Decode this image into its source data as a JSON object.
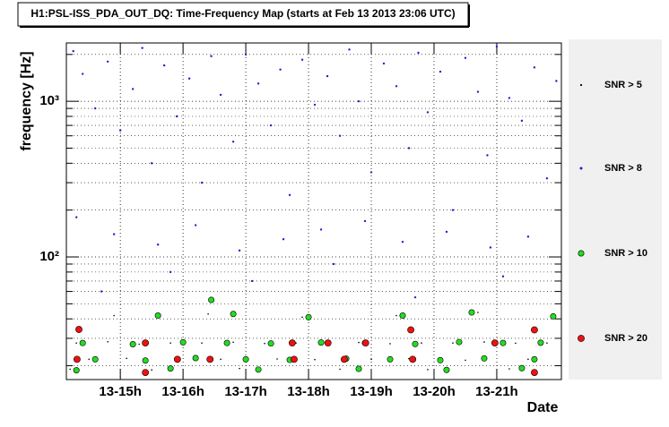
{
  "chart_data": {
    "type": "scatter",
    "title": "H1:PSL-ISS_PDA_OUT_DQ: Time-Frequency Map (starts at Feb 13 2013 23:06 UTC)",
    "xlabel": "Date",
    "ylabel": "frequency [Hz]",
    "xlim": [
      14.14,
      22.03
    ],
    "ylim": [
      16.3,
      2370
    ],
    "ylog": true,
    "grid": true,
    "xticks": [
      {
        "value": 15,
        "label": "13-15h"
      },
      {
        "value": 16,
        "label": "13-16h"
      },
      {
        "value": 17,
        "label": "13-17h"
      },
      {
        "value": 18,
        "label": "13-18h"
      },
      {
        "value": 19,
        "label": "13-19h"
      },
      {
        "value": 20,
        "label": "13-20h"
      },
      {
        "value": 21,
        "label": "13-21h"
      }
    ],
    "yticks": [
      {
        "value": 100,
        "label": "10²"
      },
      {
        "value": 1000,
        "label": "10³"
      }
    ],
    "yminorticks": [
      20,
      30,
      40,
      50,
      60,
      70,
      80,
      90,
      200,
      300,
      400,
      500,
      600,
      700,
      800,
      900,
      2000
    ],
    "series": [
      {
        "name": "SNR > 5",
        "color": "#000000",
        "x": [
          14.3,
          14.8,
          15.3,
          15.8,
          16.3,
          16.8,
          17.3,
          17.8,
          18.3,
          18.8,
          19.3,
          19.8,
          20.3,
          20.8,
          21.3,
          21.8,
          14.5,
          15.1,
          15.9,
          16.6,
          17.5,
          18.1,
          19.0,
          19.6,
          20.5,
          21.5,
          14.2,
          15.5,
          16.9,
          18.5,
          19.9,
          21.2,
          14.9,
          16.4,
          17.9,
          19.4,
          20.7,
          21.9
        ],
        "y": [
          28,
          28.5,
          27.5,
          28,
          28,
          28.3,
          27.8,
          28,
          28,
          28.2,
          27.7,
          28,
          28,
          28.4,
          27.9,
          28,
          22,
          22.3,
          21.8,
          22,
          22.1,
          21.9,
          22,
          22.2,
          21.7,
          22,
          19,
          18.8,
          19.2,
          19,
          18.9,
          19.1,
          42,
          43,
          41,
          42,
          44,
          42
        ]
      },
      {
        "name": "SNR > 8",
        "color": "#1f1fd0",
        "x": [
          14.25,
          14.4,
          14.6,
          14.8,
          15.0,
          15.2,
          15.35,
          15.5,
          15.7,
          15.9,
          16.1,
          16.3,
          16.45,
          16.6,
          16.8,
          17.0,
          17.2,
          17.4,
          17.55,
          17.7,
          17.9,
          18.1,
          18.3,
          18.5,
          18.65,
          18.8,
          19.0,
          19.2,
          19.4,
          19.6,
          19.75,
          19.9,
          20.1,
          20.3,
          20.5,
          20.7,
          20.85,
          21.0,
          21.2,
          21.4,
          21.6,
          21.8,
          21.95,
          14.3,
          14.9,
          15.6,
          16.2,
          16.9,
          17.6,
          18.2,
          18.9,
          19.5,
          20.2,
          20.9,
          21.5,
          14.7,
          15.8,
          17.1,
          18.4,
          19.7,
          21.1
        ],
        "y": [
          2100,
          1500,
          900,
          1800,
          650,
          1200,
          2200,
          400,
          1700,
          800,
          1400,
          300,
          1950,
          1100,
          550,
          2000,
          1300,
          700,
          1600,
          250,
          1850,
          950,
          1450,
          600,
          2150,
          1000,
          350,
          1750,
          1250,
          500,
          2050,
          850,
          1550,
          200,
          1900,
          1150,
          450,
          2250,
          1050,
          750,
          1650,
          320,
          1350,
          180,
          140,
          120,
          160,
          110,
          130,
          150,
          170,
          125,
          145,
          115,
          135,
          60,
          80,
          70,
          90,
          55,
          75
        ]
      },
      {
        "name": "SNR > 10",
        "color": "#22dd22",
        "x": [
          14.4,
          15.2,
          16.0,
          16.7,
          17.4,
          18.2,
          18.9,
          19.7,
          20.4,
          21.1,
          21.7,
          14.6,
          15.4,
          16.2,
          17.0,
          17.7,
          18.6,
          19.3,
          20.1,
          20.8,
          21.6,
          14.3,
          15.8,
          17.2,
          18.8,
          20.2,
          21.4,
          15.6,
          16.8,
          18.0,
          19.5,
          20.6,
          21.9,
          16.45
        ],
        "y": [
          28,
          27.5,
          28.3,
          28,
          27.8,
          28.2,
          28,
          27.6,
          28.4,
          28,
          28.1,
          22,
          21.6,
          22.4,
          22,
          21.8,
          22.2,
          22,
          21.7,
          22.3,
          22,
          18.7,
          19.2,
          18.9,
          19.1,
          18.8,
          19.3,
          42,
          43,
          41,
          42,
          44,
          41.5,
          53
        ]
      },
      {
        "name": "SNR > 20",
        "color": "#ee1111",
        "x": [
          14.34,
          15.4,
          17.74,
          18.31,
          18.91,
          19.63,
          20.97,
          21.6,
          14.31,
          15.91,
          16.43,
          17.77,
          18.57,
          19.66,
          21.6,
          15.4
        ],
        "y": [
          34.2,
          28,
          28,
          28,
          28,
          34,
          28,
          34,
          22,
          22,
          22,
          22,
          22,
          22,
          18.1,
          18.1
        ]
      }
    ]
  }
}
